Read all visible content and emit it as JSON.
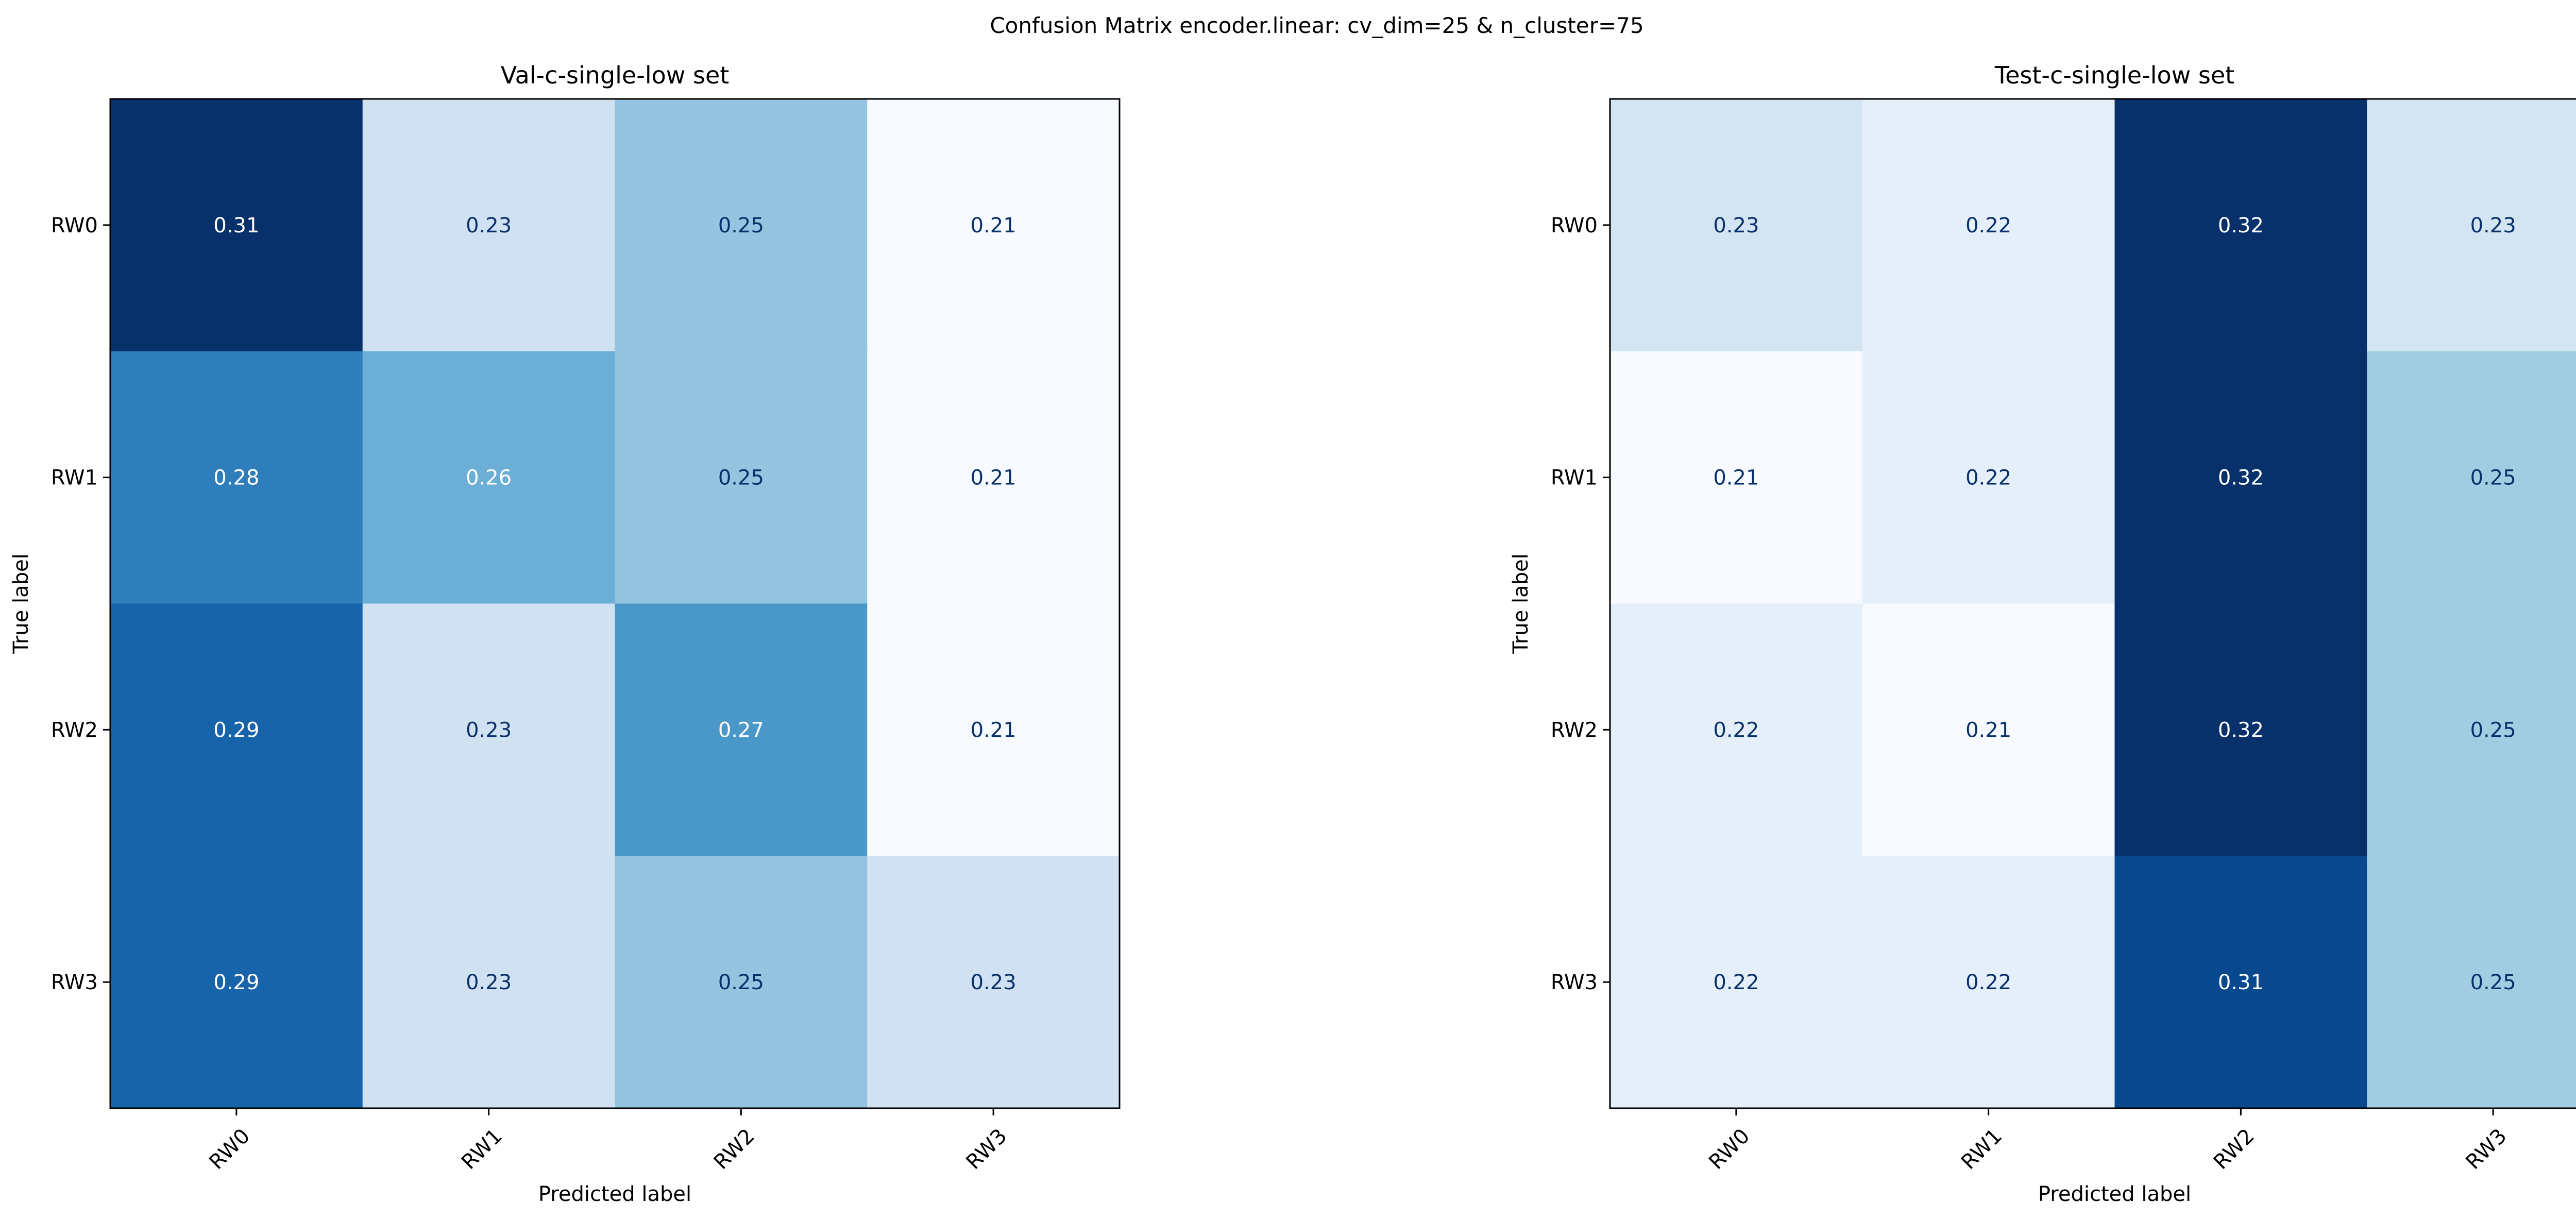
{
  "figure": {
    "suptitle": "Confusion Matrix encoder.linear: cv_dim=25 & n_cluster=75"
  },
  "chart_data": [
    {
      "type": "heatmap",
      "title": "Val-c-single-low set",
      "xlabel": "Predicted label",
      "ylabel": "True label",
      "x_categories": [
        "RW0",
        "RW1",
        "RW2",
        "RW3"
      ],
      "y_categories": [
        "RW0",
        "RW1",
        "RW2",
        "RW3"
      ],
      "values": [
        [
          0.31,
          0.23,
          0.25,
          0.21
        ],
        [
          0.28,
          0.26,
          0.25,
          0.21
        ],
        [
          0.29,
          0.23,
          0.27,
          0.21
        ],
        [
          0.29,
          0.23,
          0.25,
          0.23
        ]
      ],
      "colormap": "Blues",
      "grid": false
    },
    {
      "type": "heatmap",
      "title": "Test-c-single-low set",
      "xlabel": "Predicted label",
      "ylabel": "True label",
      "x_categories": [
        "RW0",
        "RW1",
        "RW2",
        "RW3"
      ],
      "y_categories": [
        "RW0",
        "RW1",
        "RW2",
        "RW3"
      ],
      "values": [
        [
          0.23,
          0.22,
          0.32,
          0.23
        ],
        [
          0.21,
          0.22,
          0.32,
          0.25
        ],
        [
          0.22,
          0.21,
          0.32,
          0.25
        ],
        [
          0.22,
          0.22,
          0.31,
          0.25
        ]
      ],
      "colormap": "Blues",
      "grid": false
    }
  ]
}
